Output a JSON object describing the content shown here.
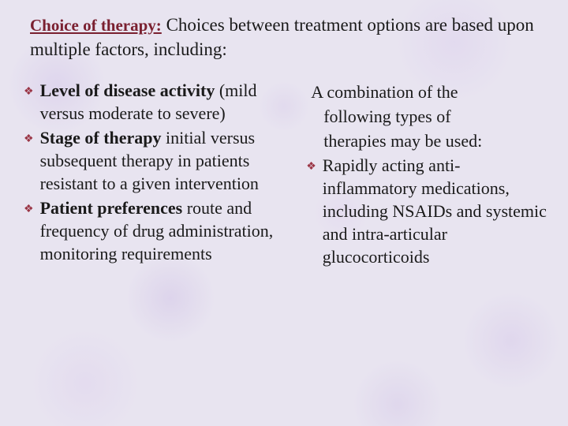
{
  "heading": {
    "lead": "Choice of therapy:",
    "rest": " Choices between treatment options are based upon multiple factors, including:"
  },
  "left": {
    "items": [
      {
        "bold": "Level of disease activity",
        "rest": " (mild versus moderate to severe)"
      },
      {
        "bold": "Stage of therapy",
        "rest": "  initial versus subsequent therapy in patients resistant to a given intervention"
      },
      {
        "bold": "Patient preferences",
        "rest": "  route and frequency of drug administration, monitoring requirements"
      }
    ]
  },
  "right": {
    "intro_line1": "A combination of the",
    "intro_line2": "following types of",
    "intro_line3": "therapies may be used:",
    "items": [
      {
        "text": "Rapidly acting anti-inflammatory medications, including NSAIDs and systemic and intra-articular glucocorticoids"
      }
    ]
  },
  "colors": {
    "lead": "#7a2030",
    "bullet": "#9a3545",
    "text": "#1a1a1a",
    "bg": "#e8e4f0"
  },
  "bullet_glyph": "❖"
}
